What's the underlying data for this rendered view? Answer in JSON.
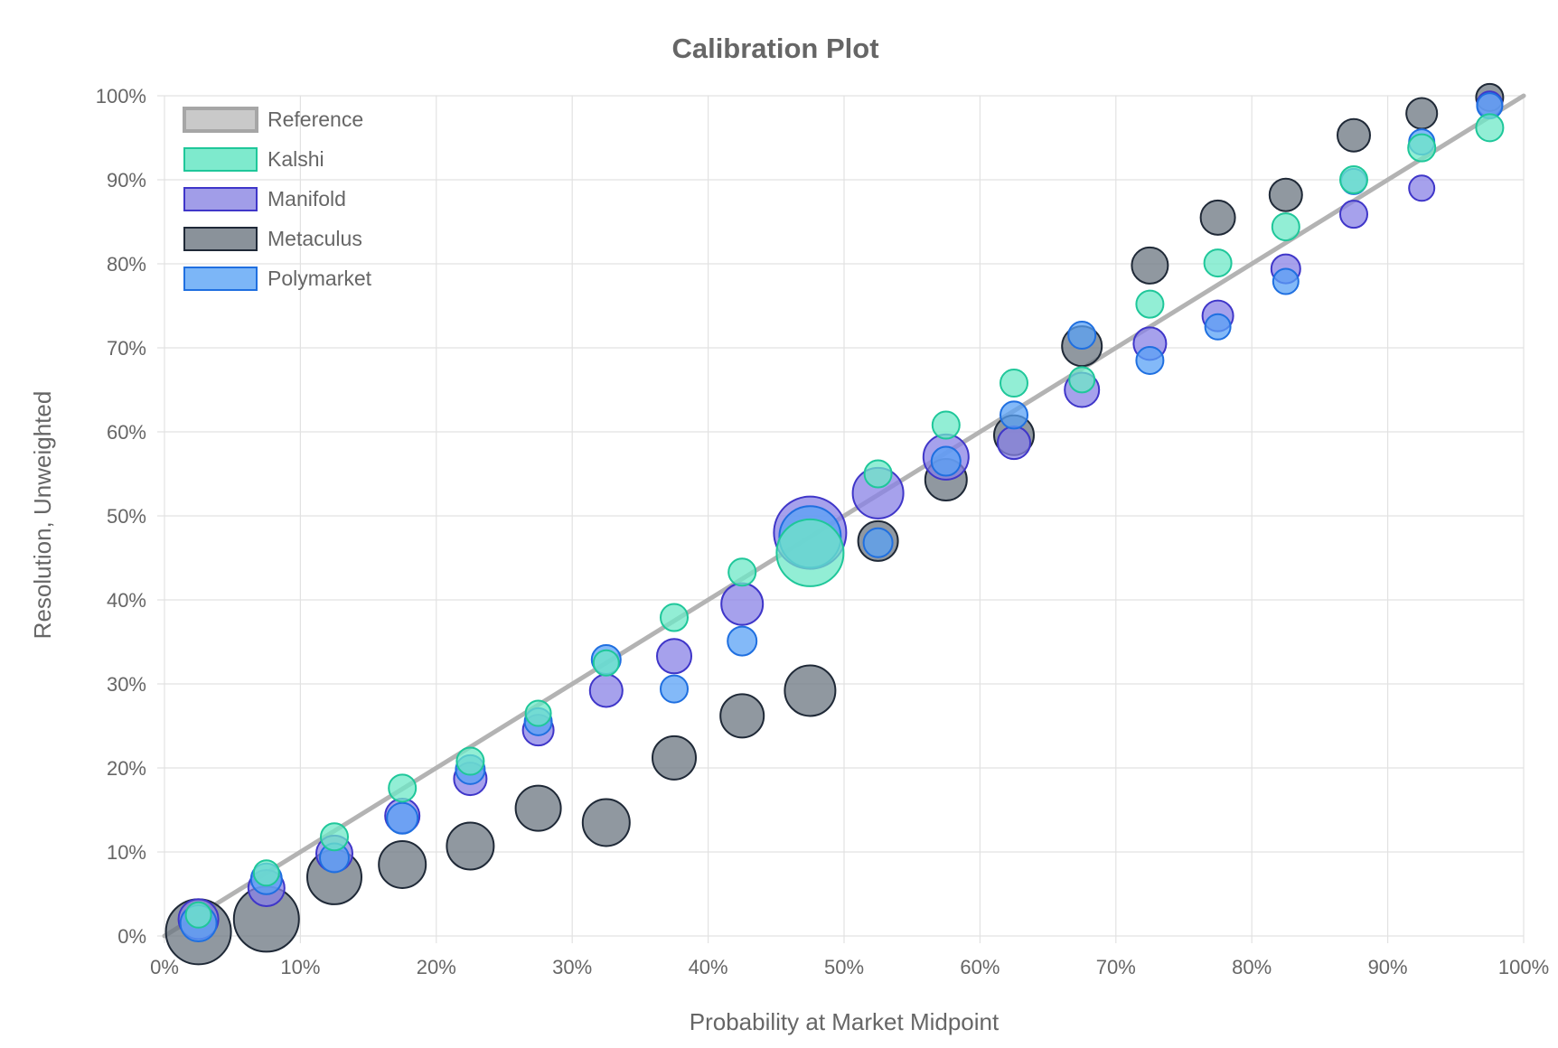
{
  "chart_data": {
    "type": "scatter",
    "title": "Calibration Plot",
    "xlabel": "Probability at Market Midpoint",
    "ylabel": "Resolution, Unweighted",
    "xlim": [
      0,
      100
    ],
    "ylim": [
      0,
      100
    ],
    "x_ticks": [
      "0%",
      "10%",
      "20%",
      "30%",
      "40%",
      "50%",
      "60%",
      "70%",
      "80%",
      "90%",
      "100%"
    ],
    "y_ticks": [
      "0%",
      "10%",
      "20%",
      "30%",
      "40%",
      "50%",
      "60%",
      "70%",
      "80%",
      "90%",
      "100%"
    ],
    "legend_position": "top-left",
    "reference": {
      "name": "Reference",
      "color": "#b3b3b3",
      "points": [
        [
          0,
          0
        ],
        [
          100,
          100
        ]
      ]
    },
    "series": [
      {
        "name": "Metaculus",
        "fill": "#6b7580",
        "stroke": "#1f2937",
        "points": [
          {
            "x": 2.5,
            "y": 0.5,
            "r": 36
          },
          {
            "x": 7.5,
            "y": 2,
            "r": 36
          },
          {
            "x": 12.5,
            "y": 7,
            "r": 30
          },
          {
            "x": 17.5,
            "y": 8.5,
            "r": 26
          },
          {
            "x": 22.5,
            "y": 10.7,
            "r": 26
          },
          {
            "x": 27.5,
            "y": 15.2,
            "r": 25
          },
          {
            "x": 32.5,
            "y": 13.5,
            "r": 26
          },
          {
            "x": 37.5,
            "y": 21.2,
            "r": 24
          },
          {
            "x": 42.5,
            "y": 26.2,
            "r": 24
          },
          {
            "x": 47.5,
            "y": 29.2,
            "r": 28
          },
          {
            "x": 52.5,
            "y": 47,
            "r": 22
          },
          {
            "x": 57.5,
            "y": 54.3,
            "r": 23
          },
          {
            "x": 62.5,
            "y": 59.6,
            "r": 22
          },
          {
            "x": 67.5,
            "y": 70.2,
            "r": 22
          },
          {
            "x": 72.5,
            "y": 79.8,
            "r": 20
          },
          {
            "x": 77.5,
            "y": 85.5,
            "r": 19
          },
          {
            "x": 82.5,
            "y": 88.2,
            "r": 18
          },
          {
            "x": 87.5,
            "y": 95.3,
            "r": 18
          },
          {
            "x": 92.5,
            "y": 97.9,
            "r": 17
          },
          {
            "x": 97.5,
            "y": 99.8,
            "r": 15
          }
        ]
      },
      {
        "name": "Manifold",
        "fill": "#8882e6",
        "stroke": "#3f36c9",
        "points": [
          {
            "x": 2.5,
            "y": 2,
            "r": 22
          },
          {
            "x": 7.5,
            "y": 5.7,
            "r": 20
          },
          {
            "x": 12.5,
            "y": 9.8,
            "r": 20
          },
          {
            "x": 17.5,
            "y": 14.3,
            "r": 19
          },
          {
            "x": 22.5,
            "y": 18.7,
            "r": 18
          },
          {
            "x": 27.5,
            "y": 24.5,
            "r": 17
          },
          {
            "x": 32.5,
            "y": 29.2,
            "r": 18
          },
          {
            "x": 37.5,
            "y": 33.3,
            "r": 19
          },
          {
            "x": 42.5,
            "y": 39.5,
            "r": 23
          },
          {
            "x": 47.5,
            "y": 48,
            "r": 40
          },
          {
            "x": 52.5,
            "y": 52.7,
            "r": 28
          },
          {
            "x": 57.5,
            "y": 57,
            "r": 25
          },
          {
            "x": 62.5,
            "y": 58.7,
            "r": 18
          },
          {
            "x": 67.5,
            "y": 65,
            "r": 19
          },
          {
            "x": 72.5,
            "y": 70.5,
            "r": 18
          },
          {
            "x": 77.5,
            "y": 73.8,
            "r": 17
          },
          {
            "x": 82.5,
            "y": 79.4,
            "r": 16
          },
          {
            "x": 87.5,
            "y": 85.9,
            "r": 15
          },
          {
            "x": 92.5,
            "y": 89,
            "r": 14
          },
          {
            "x": 97.5,
            "y": 99,
            "r": 14
          }
        ]
      },
      {
        "name": "Polymarket",
        "fill": "#5aa2f5",
        "stroke": "#1f6fe0",
        "points": [
          {
            "x": 2.5,
            "y": 1.5,
            "r": 20
          },
          {
            "x": 7.5,
            "y": 6.8,
            "r": 17
          },
          {
            "x": 12.5,
            "y": 9.3,
            "r": 16
          },
          {
            "x": 17.5,
            "y": 14,
            "r": 17
          },
          {
            "x": 22.5,
            "y": 19.8,
            "r": 16
          },
          {
            "x": 27.5,
            "y": 25.5,
            "r": 15
          },
          {
            "x": 32.5,
            "y": 32.9,
            "r": 16
          },
          {
            "x": 37.5,
            "y": 29.4,
            "r": 15
          },
          {
            "x": 42.5,
            "y": 35.1,
            "r": 16
          },
          {
            "x": 47.5,
            "y": 47.5,
            "r": 34
          },
          {
            "x": 52.5,
            "y": 46.8,
            "r": 16
          },
          {
            "x": 57.5,
            "y": 56.5,
            "r": 16
          },
          {
            "x": 62.5,
            "y": 62,
            "r": 15
          },
          {
            "x": 67.5,
            "y": 71.5,
            "r": 15
          },
          {
            "x": 72.5,
            "y": 68.5,
            "r": 15
          },
          {
            "x": 77.5,
            "y": 72.5,
            "r": 14
          },
          {
            "x": 82.5,
            "y": 77.9,
            "r": 14
          },
          {
            "x": 87.5,
            "y": 89.8,
            "r": 14
          },
          {
            "x": 92.5,
            "y": 94.5,
            "r": 14
          },
          {
            "x": 97.5,
            "y": 98.8,
            "r": 14
          }
        ]
      },
      {
        "name": "Kalshi",
        "fill": "#6ee8c7",
        "stroke": "#1fc79a",
        "points": [
          {
            "x": 2.5,
            "y": 2.5,
            "r": 14
          },
          {
            "x": 7.5,
            "y": 7.5,
            "r": 14
          },
          {
            "x": 12.5,
            "y": 11.8,
            "r": 15
          },
          {
            "x": 17.5,
            "y": 17.6,
            "r": 15
          },
          {
            "x": 22.5,
            "y": 20.8,
            "r": 15
          },
          {
            "x": 27.5,
            "y": 26.5,
            "r": 14
          },
          {
            "x": 32.5,
            "y": 32.5,
            "r": 14
          },
          {
            "x": 37.5,
            "y": 37.9,
            "r": 15
          },
          {
            "x": 42.5,
            "y": 43.3,
            "r": 15
          },
          {
            "x": 47.5,
            "y": 45.6,
            "r": 37
          },
          {
            "x": 52.5,
            "y": 55,
            "r": 15
          },
          {
            "x": 57.5,
            "y": 60.8,
            "r": 15
          },
          {
            "x": 62.5,
            "y": 65.8,
            "r": 15
          },
          {
            "x": 67.5,
            "y": 66.2,
            "r": 14
          },
          {
            "x": 72.5,
            "y": 75.2,
            "r": 15
          },
          {
            "x": 77.5,
            "y": 80.1,
            "r": 15
          },
          {
            "x": 82.5,
            "y": 84.4,
            "r": 15
          },
          {
            "x": 87.5,
            "y": 90,
            "r": 15
          },
          {
            "x": 92.5,
            "y": 93.8,
            "r": 15
          },
          {
            "x": 97.5,
            "y": 96.2,
            "r": 15
          }
        ]
      }
    ],
    "legend": [
      {
        "name": "Reference",
        "fill": "#c9c9c9",
        "stroke": "#a6a6a6"
      },
      {
        "name": "Kalshi",
        "fill": "#7eeacd",
        "stroke": "#1fc79a"
      },
      {
        "name": "Manifold",
        "fill": "#a19de8",
        "stroke": "#3f36c9"
      },
      {
        "name": "Metaculus",
        "fill": "#8a929a",
        "stroke": "#1f2937"
      },
      {
        "name": "Polymarket",
        "fill": "#7cb6f7",
        "stroke": "#1f6fe0"
      }
    ]
  }
}
